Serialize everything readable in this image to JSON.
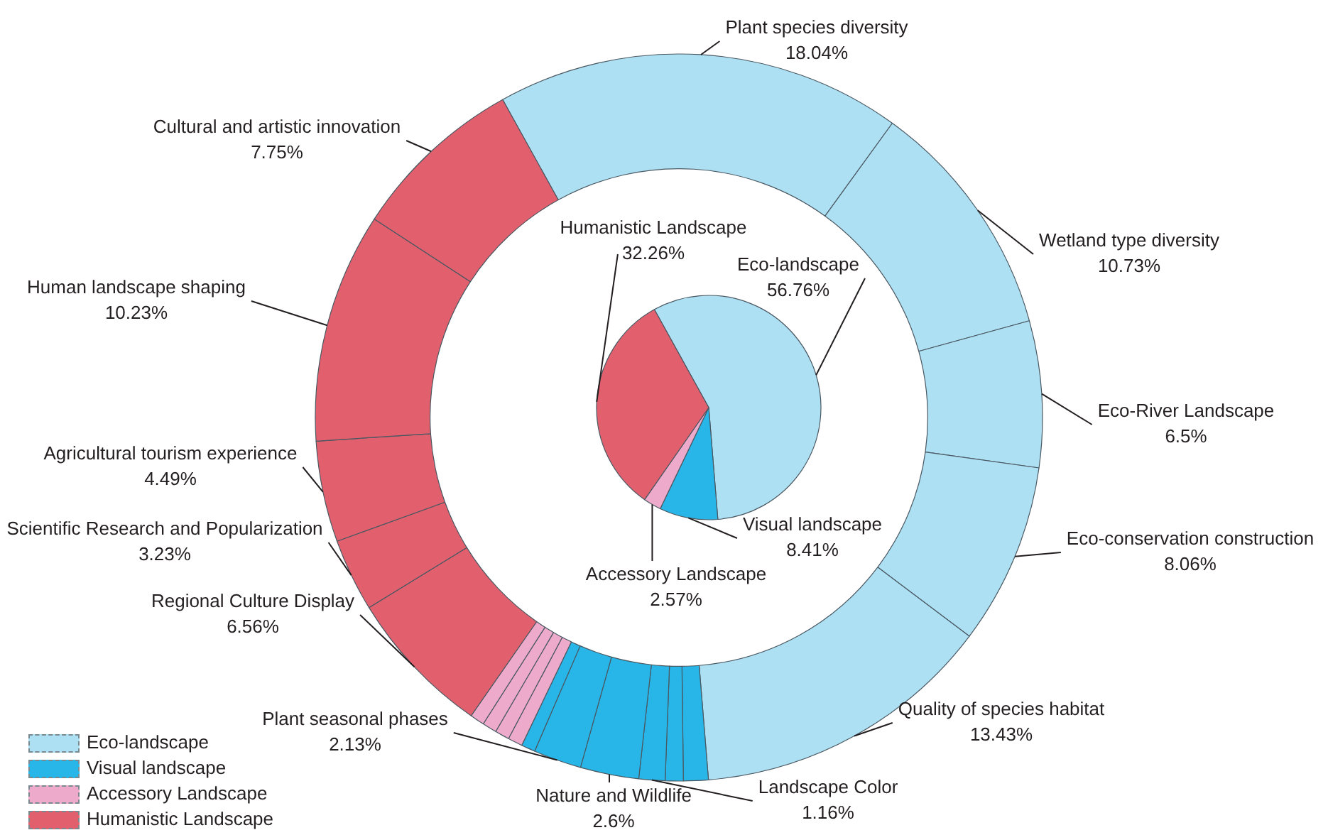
{
  "chart_data": [
    {
      "type": "pie",
      "categories": [
        "Eco-landscape",
        "Visual landscape",
        "Accessory Landscape",
        "Humanistic Landscape"
      ],
      "values": [
        56.76,
        8.41,
        2.57,
        32.26
      ],
      "colors": [
        "#aee0f4",
        "#28b6e8",
        "#eeaacb",
        "#e25f6e"
      ],
      "value_labels": [
        "56.76%",
        "8.41%",
        "2.57%",
        "32.26%"
      ],
      "legend": "bottom left"
    },
    {
      "type": "donut",
      "categories": [
        "Plant species diversity",
        "Wetland type diversity",
        "Eco-River Landscape",
        "Eco-conservation construction",
        "Quality of species habitat",
        null,
        null,
        "Landscape Color",
        "Nature and Wildlife",
        "Plant seasonal phases",
        null,
        null,
        null,
        null,
        null,
        "Regional Culture Display",
        "Scientific Research and Popularization",
        "Agricultural tourism experience",
        "Human landscape shaping",
        "Cultural and artistic innovation"
      ],
      "values": [
        18.04,
        10.73,
        6.5,
        8.06,
        13.43,
        1.1,
        0.8,
        1.16,
        2.6,
        2.13,
        0.62,
        0.65,
        0.64,
        0.64,
        0.64,
        6.56,
        3.23,
        4.49,
        10.23,
        7.75
      ],
      "colors": [
        "#aee0f4",
        "#aee0f4",
        "#aee0f4",
        "#aee0f4",
        "#aee0f4",
        "#28b6e8",
        "#28b6e8",
        "#28b6e8",
        "#28b6e8",
        "#28b6e8",
        "#28b6e8",
        "#eeaacb",
        "#eeaacb",
        "#eeaacb",
        "#eeaacb",
        "#e25f6e",
        "#e25f6e",
        "#e25f6e",
        "#e25f6e",
        "#e25f6e"
      ],
      "value_labels": [
        "18.04%",
        "10.73%",
        "6.5%",
        "8.06%",
        "13.43%",
        null,
        null,
        "1.16%",
        "2.6%",
        "2.13%",
        null,
        null,
        null,
        null,
        null,
        "6.56%",
        "3.23%",
        "4.49%",
        "10.23%",
        "7.75%"
      ]
    }
  ]
}
